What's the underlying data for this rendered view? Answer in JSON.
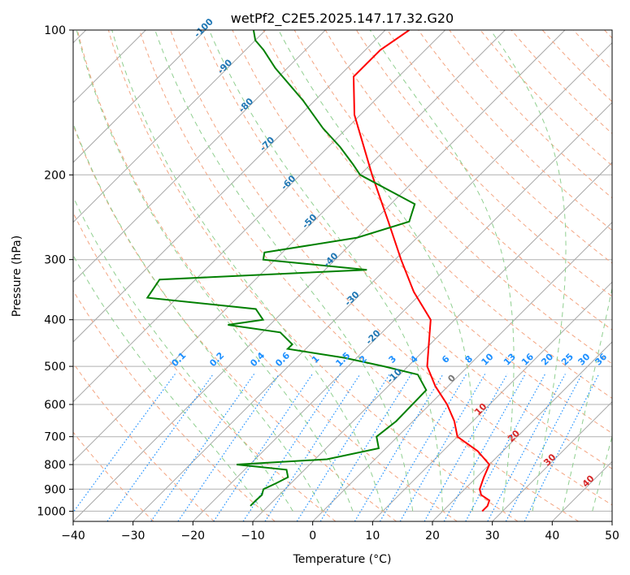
{
  "chart_data": {
    "type": "line",
    "title": "wetPf2_C2E5.2025.147.17.32.G20",
    "xlabel": "Temperature (°C)",
    "ylabel": "Pressure (hPa)",
    "xlim": [
      -40,
      50
    ],
    "ylim": [
      1050,
      100
    ],
    "y_scale": "log",
    "skew": true,
    "grid": true,
    "x_ticks": [
      -40,
      -30,
      -20,
      -10,
      0,
      10,
      20,
      30,
      40,
      50
    ],
    "y_ticks": [
      100,
      200,
      300,
      400,
      500,
      600,
      700,
      800,
      900,
      1000
    ],
    "series": [
      {
        "color": "#ff0000",
        "points": [
          [
            1000,
            26.6
          ],
          [
            975,
            26.6
          ],
          [
            950,
            26.0
          ],
          [
            925,
            23.7
          ],
          [
            900,
            22.5
          ],
          [
            850,
            21.2
          ],
          [
            800,
            20.0
          ],
          [
            750,
            15.8
          ],
          [
            700,
            10.0
          ],
          [
            650,
            6.9
          ],
          [
            600,
            2.9
          ],
          [
            550,
            -2.1
          ],
          [
            500,
            -6.8
          ],
          [
            450,
            -10.2
          ],
          [
            400,
            -14.0
          ],
          [
            350,
            -21.5
          ],
          [
            300,
            -29.0
          ],
          [
            250,
            -37.5
          ],
          [
            200,
            -48.0
          ],
          [
            150,
            -61.0
          ],
          [
            125,
            -67.5
          ],
          [
            110,
            -67.5
          ],
          [
            100,
            -66.0
          ]
        ]
      },
      {
        "color": "#008000",
        "points": [
          [
            975,
            -13.0
          ],
          [
            950,
            -13.0
          ],
          [
            925,
            -12.9
          ],
          [
            900,
            -13.6
          ],
          [
            875,
            -12.5
          ],
          [
            850,
            -11.5
          ],
          [
            820,
            -13.0
          ],
          [
            800,
            -22.2
          ],
          [
            780,
            -8.0
          ],
          [
            740,
            -1.2
          ],
          [
            700,
            -3.5
          ],
          [
            650,
            -2.8
          ],
          [
            600,
            -2.9
          ],
          [
            560,
            -3.0
          ],
          [
            520,
            -7.0
          ],
          [
            500,
            -14.0
          ],
          [
            480,
            -22.0
          ],
          [
            460,
            -33.0
          ],
          [
            450,
            -33.0
          ],
          [
            425,
            -37.0
          ],
          [
            410,
            -47.0
          ],
          [
            400,
            -42.0
          ],
          [
            380,
            -45.0
          ],
          [
            360,
            -65.0
          ],
          [
            330,
            -66.0
          ],
          [
            315,
            -33.0
          ],
          [
            300,
            -52.0
          ],
          [
            290,
            -53.0
          ],
          [
            270,
            -40.0
          ],
          [
            250,
            -34.0
          ],
          [
            230,
            -36.0
          ],
          [
            200,
            -50.0
          ],
          [
            190,
            -53.0
          ],
          [
            175,
            -58.0
          ],
          [
            160,
            -64.0
          ],
          [
            140,
            -72.0
          ],
          [
            120,
            -82.0
          ],
          [
            110,
            -87.0
          ],
          [
            105,
            -90.0
          ],
          [
            100,
            -92.0
          ]
        ]
      }
    ],
    "isotherm_labels": [
      "-100",
      "-90",
      "-80",
      "-70",
      "-60",
      "-50",
      "-40",
      "-30",
      "-20",
      "-10"
    ],
    "mixing_ratio_labels": [
      "0.1",
      "0.2",
      "0.4",
      "0.6",
      "1",
      "1.5",
      "2",
      "3",
      "4",
      "6",
      "8",
      "10",
      "13",
      "16",
      "20",
      "25",
      "30",
      "36"
    ],
    "moist_adiabat_labels": [
      "0",
      "10",
      "20",
      "30",
      "40"
    ]
  }
}
